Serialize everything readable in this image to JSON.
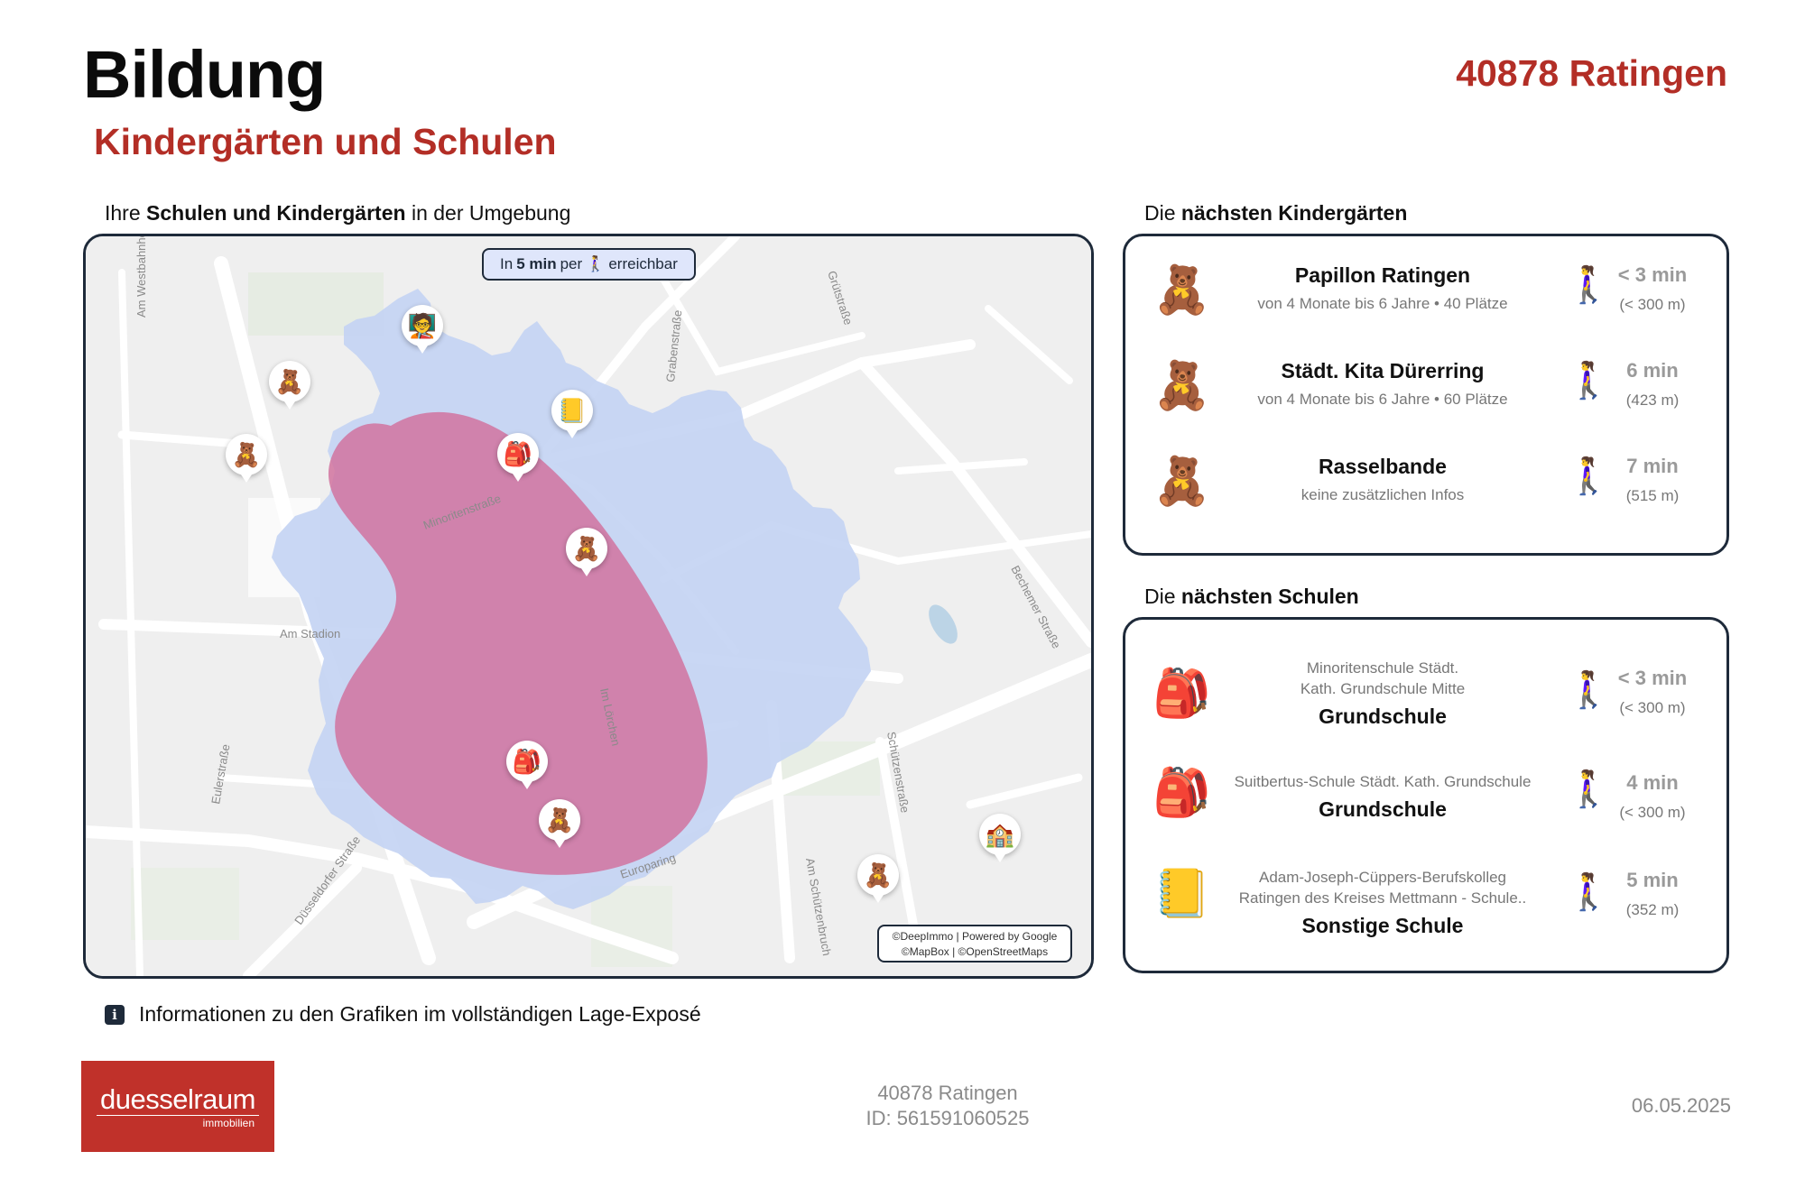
{
  "header": {
    "title": "Bildung",
    "subtitle": "Kindergärten und Schulen",
    "location": "40878 Ratingen"
  },
  "map_section": {
    "label_prefix": "Ihre ",
    "label_bold": "Schulen und Kindergärten",
    "label_suffix": " in der Umgebung",
    "badge": {
      "prefix": "In ",
      "bold": "5 min",
      "middle": " per ",
      "walk_icon": "🚶‍♀️",
      "suffix": " erreichbar"
    },
    "attribution_line1": "©DeepImmo | Powered by Google",
    "attribution_line2": "©MapBox | ©OpenStreetMaps",
    "street_labels": [
      "Am Westbahnhof",
      "Grütstraße",
      "Grabenstraße",
      "Minoritenstraße",
      "Bechemer Straße",
      "Am Stadion",
      "Im Lörchen",
      "Eulerstraße",
      "Düsseldorfer Straße",
      "Europaring",
      "Schützenstraße",
      "Am Schützenbruch"
    ],
    "markers": [
      {
        "icon": "teddy-bear-icon",
        "glyph": "🧸"
      },
      {
        "icon": "teddy-bear-icon",
        "glyph": "🧸"
      },
      {
        "icon": "teddy-bear-icon",
        "glyph": "🧸"
      },
      {
        "icon": "teddy-bear-icon",
        "glyph": "🧸"
      },
      {
        "icon": "teddy-bear-icon",
        "glyph": "🧸"
      },
      {
        "icon": "backpack-icon",
        "glyph": "🎒"
      },
      {
        "icon": "backpack-icon",
        "glyph": "🎒"
      },
      {
        "icon": "notebook-icon",
        "glyph": "📒"
      },
      {
        "icon": "blackboard-icon",
        "glyph": "🧑‍🏫"
      },
      {
        "icon": "school-building-icon",
        "glyph": "🏫"
      }
    ]
  },
  "kindergartens": {
    "label_prefix": "Die ",
    "label_bold": "nächsten Kindergärten",
    "items": [
      {
        "name": "Papillon Ratingen",
        "detail": "von 4 Monate bis 6 Jahre • 40 Plätze",
        "time": "< 3 min",
        "distance": "(< 300 m)",
        "icon": "teddy-bear-icon",
        "glyph": "🧸"
      },
      {
        "name": "Städt. Kita Dürerring",
        "detail": "von 4 Monate bis 6 Jahre • 60 Plätze",
        "time": "6 min",
        "distance": "(423 m)",
        "icon": "teddy-bear-icon",
        "glyph": "🧸"
      },
      {
        "name": "Rasselbande",
        "detail": "keine zusätzlichen Infos",
        "time": "7 min",
        "distance": "(515 m)",
        "icon": "teddy-bear-icon",
        "glyph": "🧸"
      }
    ]
  },
  "schools": {
    "label_prefix": "Die ",
    "label_bold": "nächsten Schulen",
    "items": [
      {
        "line1": "Minoritenschule Städt.",
        "line2": "Kath. Grundschule Mitte",
        "type": "Grundschule",
        "time": "< 3 min",
        "distance": "(< 300 m)",
        "icon": "backpack-icon",
        "glyph": "🎒"
      },
      {
        "line1": "Suitbertus-Schule Städt. Kath. Grundschule",
        "line2": "",
        "type": "Grundschule",
        "time": "4 min",
        "distance": "(< 300 m)",
        "icon": "backpack-icon",
        "glyph": "🎒"
      },
      {
        "line1": "Adam-Joseph-Cüppers-Berufskolleg",
        "line2": "Ratingen des Kreises Mettmann - Schule..",
        "type": "Sonstige Schule",
        "time": "5 min",
        "distance": "(352 m)",
        "icon": "notebook-icon",
        "glyph": "📒"
      }
    ]
  },
  "walk_glyph": "🚶‍♀️",
  "info_text": "Informationen zu den Grafiken im vollständigen Lage-Exposé",
  "footer": {
    "logo_main": "duesselraum",
    "logo_sub": "immobilien",
    "address": "40878 Ratingen",
    "id": "ID: 561591060525",
    "date": "06.05.2025"
  },
  "colors": {
    "accent": "#b32e26",
    "frame": "#1e2a3a",
    "isochrone_5min": "#c3d3f3",
    "isochrone_core": "#d1739f",
    "map_bg": "#efefef"
  }
}
